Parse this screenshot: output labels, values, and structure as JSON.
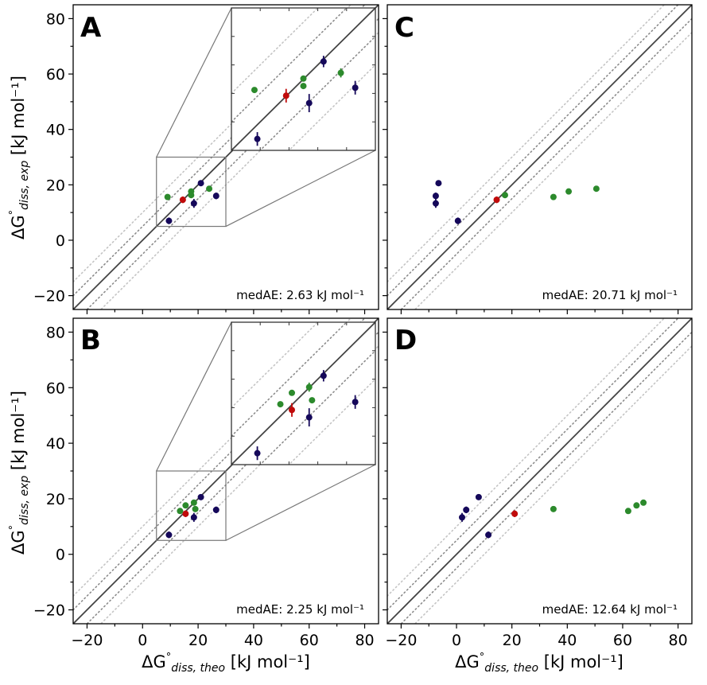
{
  "colors": {
    "navy": "#15085a",
    "green": "#2c8a2c",
    "red": "#c00a0a",
    "identity": "#444444",
    "dotted_dark": "#8c8c8c",
    "dotted_light": "#c4c4c4",
    "inset_frame": "#777777"
  },
  "axes": {
    "xlabel": "ΔG°diss, theo [kJ mol⁻¹]",
    "ylabel": "ΔG°diss, exp [kJ mol⁻¹]",
    "xlabel_main": "ΔG",
    "xlabel_sub": "diss, theo",
    "xlabel_unit": " [kJ mol⁻¹]",
    "ylabel_main": "ΔG",
    "ylabel_sub": "diss, exp",
    "ylabel_unit": " [kJ mol⁻¹]",
    "degree": "°",
    "range": [
      -25,
      85
    ],
    "ticks": [
      -20,
      0,
      20,
      40,
      60,
      80
    ],
    "tick_labels": [
      "−20",
      "0",
      "20",
      "40",
      "60",
      "80"
    ],
    "dotted_offsets": [
      5,
      10
    ]
  },
  "chart_data": [
    {
      "panel": "A",
      "type": "scatter",
      "medae_text": "medAE: 2.63 kJ mol⁻¹",
      "inset": {
        "xlim": [
          5,
          30
        ],
        "ylim": [
          5,
          30
        ]
      },
      "points": [
        {
          "x": 9.5,
          "y": 7.0,
          "err": 1.2,
          "series": "navy"
        },
        {
          "x": 18.5,
          "y": 13.3,
          "err": 1.6,
          "series": "navy"
        },
        {
          "x": 21.0,
          "y": 20.6,
          "err": 1.0,
          "series": "navy"
        },
        {
          "x": 26.5,
          "y": 16.0,
          "err": 1.2,
          "series": "navy"
        },
        {
          "x": 14.5,
          "y": 14.6,
          "err": 1.2,
          "series": "red"
        },
        {
          "x": 9.0,
          "y": 15.6,
          "err": 0,
          "series": "green"
        },
        {
          "x": 17.5,
          "y": 16.3,
          "err": 0,
          "series": "green"
        },
        {
          "x": 17.5,
          "y": 17.6,
          "err": 0,
          "series": "green"
        },
        {
          "x": 24.0,
          "y": 18.6,
          "err": 0.8,
          "series": "green"
        }
      ]
    },
    {
      "panel": "B",
      "type": "scatter",
      "medae_text": "medAE: 2.25 kJ mol⁻¹",
      "inset": {
        "xlim": [
          5,
          30
        ],
        "ylim": [
          5,
          30
        ]
      },
      "points": [
        {
          "x": 9.5,
          "y": 7.0,
          "err": 1.2,
          "series": "navy"
        },
        {
          "x": 18.5,
          "y": 13.3,
          "err": 1.6,
          "series": "navy"
        },
        {
          "x": 21.0,
          "y": 20.6,
          "err": 1.0,
          "series": "navy"
        },
        {
          "x": 26.5,
          "y": 16.0,
          "err": 1.2,
          "series": "navy"
        },
        {
          "x": 15.5,
          "y": 14.6,
          "err": 1.2,
          "series": "red"
        },
        {
          "x": 13.5,
          "y": 15.6,
          "err": 0,
          "series": "green"
        },
        {
          "x": 15.5,
          "y": 17.6,
          "err": 0,
          "series": "green"
        },
        {
          "x": 19.0,
          "y": 16.3,
          "err": 0,
          "series": "green"
        },
        {
          "x": 18.5,
          "y": 18.6,
          "err": 0.8,
          "series": "green"
        }
      ]
    },
    {
      "panel": "C",
      "type": "scatter",
      "medae_text": "medAE: 20.71 kJ mol⁻¹",
      "points": [
        {
          "x": -6.5,
          "y": 20.6,
          "err": 1.0,
          "series": "navy"
        },
        {
          "x": -7.5,
          "y": 16.0,
          "err": 1.2,
          "series": "navy"
        },
        {
          "x": -7.5,
          "y": 13.3,
          "err": 1.6,
          "series": "navy"
        },
        {
          "x": 0.5,
          "y": 7.0,
          "err": 1.2,
          "series": "navy"
        },
        {
          "x": 14.5,
          "y": 14.6,
          "err": 1.2,
          "series": "red"
        },
        {
          "x": 17.5,
          "y": 16.3,
          "err": 0,
          "series": "green"
        },
        {
          "x": 35.0,
          "y": 15.6,
          "err": 0,
          "series": "green"
        },
        {
          "x": 40.5,
          "y": 17.6,
          "err": 0,
          "series": "green"
        },
        {
          "x": 50.5,
          "y": 18.6,
          "err": 0,
          "series": "green"
        }
      ]
    },
    {
      "panel": "D",
      "type": "scatter",
      "medae_text": "medAE: 12.64 kJ mol⁻¹",
      "points": [
        {
          "x": 8.0,
          "y": 20.6,
          "err": 1.0,
          "series": "navy"
        },
        {
          "x": 3.5,
          "y": 16.0,
          "err": 1.2,
          "series": "navy"
        },
        {
          "x": 2.0,
          "y": 13.3,
          "err": 1.6,
          "series": "navy"
        },
        {
          "x": 11.5,
          "y": 7.0,
          "err": 1.2,
          "series": "navy"
        },
        {
          "x": 21.0,
          "y": 14.6,
          "err": 1.2,
          "series": "red"
        },
        {
          "x": 35.0,
          "y": 16.3,
          "err": 0,
          "series": "green"
        },
        {
          "x": 62.0,
          "y": 15.6,
          "err": 0,
          "series": "green"
        },
        {
          "x": 65.0,
          "y": 17.6,
          "err": 0,
          "series": "green"
        },
        {
          "x": 67.5,
          "y": 18.6,
          "err": 0,
          "series": "green"
        }
      ]
    }
  ]
}
